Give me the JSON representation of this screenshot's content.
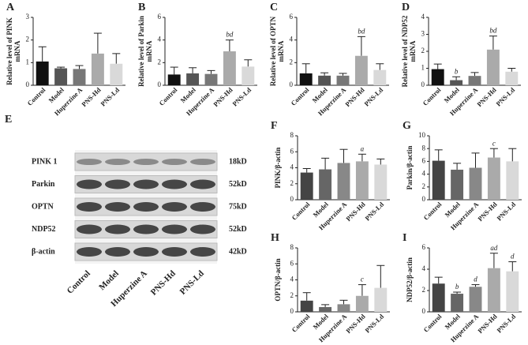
{
  "blot": {
    "panel": "E",
    "rows": [
      {
        "protein": "PINK 1",
        "size": "18kD"
      },
      {
        "protein": "Parkin",
        "size": "52kD"
      },
      {
        "protein": "OPTN",
        "size": "75kD"
      },
      {
        "protein": "NDP52",
        "size": "52kD"
      },
      {
        "protein": "β-actin",
        "size": "42kD"
      }
    ],
    "lanes": [
      "Control",
      "Model",
      "Huperzine A",
      "PNS-Hd",
      "PNS-Ld"
    ]
  },
  "chart_data": [
    {
      "type": "bar",
      "panel": "A",
      "y_label": [
        "Relative level of PINK",
        "mRNA"
      ],
      "categories": [
        "Control",
        "Model",
        "Huperzine A",
        "PNS-Hd",
        "PNS-Ld"
      ],
      "values": [
        1.05,
        0.75,
        0.72,
        1.4,
        0.95
      ],
      "errors": [
        0.65,
        0.05,
        0.15,
        0.9,
        0.45
      ],
      "sig_labels": [
        null,
        null,
        null,
        null,
        null
      ],
      "colors": [
        "#111111",
        "#555555",
        "#777777",
        "#aaaaaa",
        "#d9d9d9"
      ],
      "ylim": [
        0,
        3
      ],
      "yticks": [
        0,
        1,
        2,
        3
      ]
    },
    {
      "type": "bar",
      "panel": "B",
      "y_label": [
        "Relative level of Parkin",
        "mRNA"
      ],
      "categories": [
        "Control",
        "Model",
        "Huperzine A",
        "PNS-Hd",
        "PNS-Ld"
      ],
      "values": [
        0.95,
        1.05,
        1.0,
        3.0,
        1.65
      ],
      "errors": [
        0.65,
        0.5,
        0.3,
        1.0,
        0.6
      ],
      "sig_labels": [
        null,
        null,
        null,
        "bd",
        null
      ],
      "colors": [
        "#111111",
        "#555555",
        "#777777",
        "#aaaaaa",
        "#d9d9d9"
      ],
      "ylim": [
        0,
        6
      ],
      "yticks": [
        0,
        2,
        4,
        6
      ]
    },
    {
      "type": "bar",
      "panel": "C",
      "y_label": [
        "Relative level of OPTN",
        "mRNA"
      ],
      "categories": [
        "Control",
        "Model",
        "Huperzine A",
        "PNS-Hd",
        "PNS-Ld"
      ],
      "values": [
        1.05,
        0.85,
        0.85,
        2.6,
        1.35
      ],
      "errors": [
        0.85,
        0.25,
        0.2,
        1.7,
        0.55
      ],
      "sig_labels": [
        null,
        null,
        null,
        "bd",
        null
      ],
      "colors": [
        "#111111",
        "#555555",
        "#777777",
        "#aaaaaa",
        "#d9d9d9"
      ],
      "ylim": [
        0,
        6
      ],
      "yticks": [
        0,
        2,
        4,
        6
      ]
    },
    {
      "type": "bar",
      "panel": "D",
      "y_label": [
        "Relative  level of NDP52",
        "mRNA"
      ],
      "categories": [
        "Control",
        "Model",
        "Huperzine A",
        "PNS-Hd",
        "PNS-Ld"
      ],
      "values": [
        0.95,
        0.3,
        0.55,
        2.1,
        0.8
      ],
      "errors": [
        0.3,
        0.2,
        0.2,
        0.8,
        0.2
      ],
      "sig_labels": [
        null,
        "b",
        null,
        "bd",
        null
      ],
      "colors": [
        "#111111",
        "#555555",
        "#777777",
        "#aaaaaa",
        "#d9d9d9"
      ],
      "ylim": [
        0,
        4
      ],
      "yticks": [
        0,
        1,
        2,
        3,
        4
      ]
    },
    {
      "type": "bar",
      "panel": "F",
      "y_label": [
        "PINK/β-actin"
      ],
      "categories": [
        "Control",
        "Model",
        "Huperzine A",
        "PNS-Hd",
        "PNS-Ld"
      ],
      "values": [
        3.4,
        3.8,
        4.6,
        4.8,
        4.4
      ],
      "errors": [
        0.5,
        1.4,
        1.7,
        0.9,
        0.7
      ],
      "sig_labels": [
        null,
        null,
        null,
        "a",
        null
      ],
      "colors": [
        "#444444",
        "#666666",
        "#888888",
        "#aaaaaa",
        "#d9d9d9"
      ],
      "ylim": [
        0,
        8
      ],
      "yticks": [
        0,
        2,
        4,
        6,
        8
      ]
    },
    {
      "type": "bar",
      "panel": "G",
      "y_label": [
        "Parkin/β-actin"
      ],
      "categories": [
        "Control",
        "Model",
        "Huperzine A",
        "PNS-Hd",
        "PNS-Ld"
      ],
      "values": [
        6.1,
        4.7,
        5.0,
        6.6,
        6.0
      ],
      "errors": [
        1.7,
        1.0,
        2.3,
        1.4,
        2.0
      ],
      "sig_labels": [
        null,
        null,
        null,
        "c",
        null
      ],
      "colors": [
        "#444444",
        "#666666",
        "#888888",
        "#aaaaaa",
        "#d9d9d9"
      ],
      "ylim": [
        0,
        10
      ],
      "yticks": [
        0,
        2,
        4,
        6,
        8,
        10
      ]
    },
    {
      "type": "bar",
      "panel": "H",
      "y_label": [
        "OPTN/β-actin"
      ],
      "categories": [
        "Control",
        "Model",
        "Huperzine A",
        "PNS-Hd",
        "PNS-Ld"
      ],
      "values": [
        1.4,
        0.6,
        0.95,
        2.0,
        3.0
      ],
      "errors": [
        1.0,
        0.3,
        0.5,
        1.4,
        2.8
      ],
      "sig_labels": [
        null,
        null,
        null,
        "c",
        null
      ],
      "colors": [
        "#444444",
        "#666666",
        "#888888",
        "#aaaaaa",
        "#d9d9d9"
      ],
      "ylim": [
        0,
        8
      ],
      "yticks": [
        0,
        2,
        4,
        6,
        8
      ]
    },
    {
      "type": "bar",
      "panel": "I",
      "y_label": [
        "NDP52/β-actin"
      ],
      "categories": [
        "Control",
        "Model",
        "Huperzine A",
        "PNS-Hd",
        "PNS-Ld"
      ],
      "values": [
        2.65,
        1.7,
        2.35,
        4.1,
        3.8
      ],
      "errors": [
        0.6,
        0.15,
        0.2,
        1.4,
        0.9
      ],
      "sig_labels": [
        null,
        "b",
        "d",
        "ad",
        "d"
      ],
      "colors": [
        "#444444",
        "#666666",
        "#888888",
        "#aaaaaa",
        "#d9d9d9"
      ],
      "ylim": [
        0,
        6
      ],
      "yticks": [
        0,
        2,
        4,
        6
      ]
    }
  ]
}
